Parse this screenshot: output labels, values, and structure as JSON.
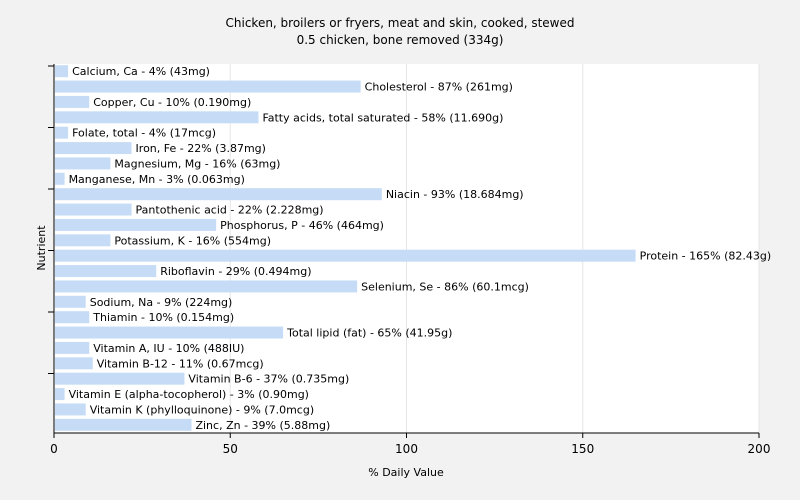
{
  "chart_data": {
    "type": "bar",
    "orientation": "horizontal",
    "title": [
      "Chicken, broilers or fryers, meat and skin, cooked, stewed",
      "0.5 chicken, bone removed (334g)"
    ],
    "xlabel": "% Daily Value",
    "ylabel": "Nutrient",
    "xlim": [
      0,
      200
    ],
    "xticks": [
      "0",
      "50",
      "100",
      "150",
      "200"
    ],
    "grid": true,
    "bar_color": "#c6dcf6",
    "categories": [
      "Calcium, Ca",
      "Cholesterol",
      "Copper, Cu",
      "Fatty acids, total saturated",
      "Folate, total",
      "Iron, Fe",
      "Magnesium, Mg",
      "Manganese, Mn",
      "Niacin",
      "Pantothenic acid",
      "Phosphorus, P",
      "Potassium, K",
      "Protein",
      "Riboflavin",
      "Selenium, Se",
      "Sodium, Na",
      "Thiamin",
      "Total lipid (fat)",
      "Vitamin A, IU",
      "Vitamin B-12",
      "Vitamin B-6",
      "Vitamin E (alpha-tocopherol)",
      "Vitamin K (phylloquinone)",
      "Zinc, Zn"
    ],
    "values": [
      4,
      87,
      10,
      58,
      4,
      22,
      16,
      3,
      93,
      22,
      46,
      16,
      165,
      29,
      86,
      9,
      10,
      65,
      10,
      11,
      37,
      3,
      9,
      39
    ],
    "labels": [
      "Calcium, Ca - 4% (43mg)",
      "Cholesterol - 87% (261mg)",
      "Copper, Cu - 10% (0.190mg)",
      "Fatty acids, total saturated - 58% (11.690g)",
      "Folate, total - 4% (17mcg)",
      "Iron, Fe - 22% (3.87mg)",
      "Magnesium, Mg - 16% (63mg)",
      "Manganese, Mn - 3% (0.063mg)",
      "Niacin - 93% (18.684mg)",
      "Pantothenic acid - 22% (2.228mg)",
      "Phosphorus, P - 46% (464mg)",
      "Potassium, K - 16% (554mg)",
      "Protein - 165% (82.43g)",
      "Riboflavin - 29% (0.494mg)",
      "Selenium, Se - 86% (60.1mcg)",
      "Sodium, Na - 9% (224mg)",
      "Thiamin - 10% (0.154mg)",
      "Total lipid (fat) - 65% (41.95g)",
      "Vitamin A, IU - 10% (488IU)",
      "Vitamin B-12 - 11% (0.67mcg)",
      "Vitamin B-6 - 37% (0.735mg)",
      "Vitamin E (alpha-tocopherol) - 3% (0.90mg)",
      "Vitamin K (phylloquinone) - 9% (7.0mcg)",
      "Zinc, Zn - 39% (5.88mg)"
    ]
  }
}
